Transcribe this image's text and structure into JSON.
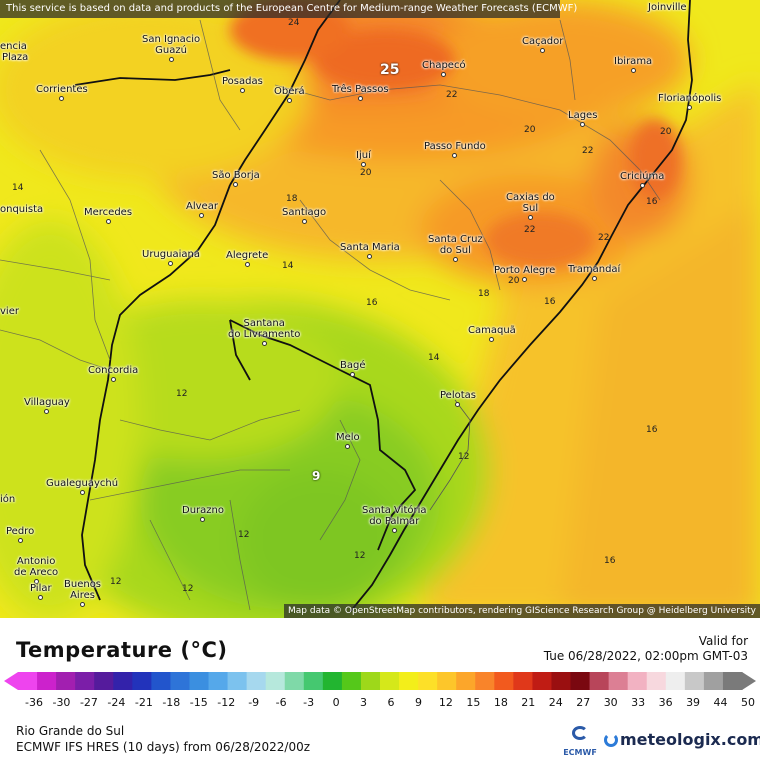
{
  "notice": "This service is based on data and products of the European Centre for Medium-range Weather Forecasts (ECMWF)",
  "attribution": "Map data © OpenStreetMap contributors, rendering GIScience Research Group @ Heidelberg University",
  "title": "Temperature (°C)",
  "valid": {
    "label": "Valid for",
    "time": "Tue 06/28/2022, 02:00pm GMT-03"
  },
  "region": "Rio Grande do Sul",
  "model": "ECMWF IFS HRES (10 days) from 06/28/2022/00z",
  "brand": {
    "ecmwf": "ECMWF",
    "meteologix": "meteologix.com"
  },
  "legend": {
    "ticks": [
      "-36",
      "-30",
      "-27",
      "-24",
      "-21",
      "-18",
      "-15",
      "-12",
      "-9",
      "-6",
      "-3",
      "0",
      "3",
      "6",
      "9",
      "12",
      "15",
      "18",
      "21",
      "24",
      "27",
      "30",
      "33",
      "36",
      "39",
      "44",
      "50"
    ],
    "colors": [
      "#ee44ee",
      "#cc22cc",
      "#a21fb0",
      "#7b1ea8",
      "#551b9c",
      "#3322aa",
      "#2233bb",
      "#2255cc",
      "#2e74d8",
      "#3b8fe0",
      "#55a8ea",
      "#7cc2ee",
      "#a6d8ee",
      "#b6e8dc",
      "#7fd9a8",
      "#45c870",
      "#22b530",
      "#55c81a",
      "#9ed81a",
      "#d5e81a",
      "#f3ee1a",
      "#fde028",
      "#fdc62a",
      "#fca62a",
      "#f9842a",
      "#f25a1e",
      "#e0381a",
      "#c01c14",
      "#9a0f10",
      "#7a0810",
      "#b8455a",
      "#dc7f94",
      "#f2b2c2",
      "#f7d8de",
      "#eeeeee",
      "#c8c8c8",
      "#a0a0a0",
      "#7a7a7a"
    ]
  },
  "cities": [
    {
      "name": "Joinville"
    },
    {
      "name": "San Ignacio\nGuazú"
    },
    {
      "name": "Corrientes"
    },
    {
      "name": "Posadas"
    },
    {
      "name": "Oberá"
    },
    {
      "name": "Três Passos"
    },
    {
      "name": "Chapecó"
    },
    {
      "name": "Caçador"
    },
    {
      "name": "Ibirama"
    },
    {
      "name": "Florianópolis"
    },
    {
      "name": "Lages"
    },
    {
      "name": "Passo Fundo"
    },
    {
      "name": "Ijuí"
    },
    {
      "name": "São Borja"
    },
    {
      "name": "Criciúma"
    },
    {
      "name": "Caxias do\nSul"
    },
    {
      "name": "Mercedes"
    },
    {
      "name": "Alvear"
    },
    {
      "name": "Santiago"
    },
    {
      "name": "Santa Maria"
    },
    {
      "name": "Santa Cruz\ndo Sul"
    },
    {
      "name": "Uruguaiana"
    },
    {
      "name": "Alegrete"
    },
    {
      "name": "Porto Alegre"
    },
    {
      "name": "Tramandaí"
    },
    {
      "name": "Camaquã"
    },
    {
      "name": "Santana\ndo Livramento"
    },
    {
      "name": "Concordia"
    },
    {
      "name": "Bagé"
    },
    {
      "name": "Villaguay"
    },
    {
      "name": "Pelotas"
    },
    {
      "name": "Melo"
    },
    {
      "name": "Gualeguaychú"
    },
    {
      "name": "Santa Vitória\ndo Palmar"
    },
    {
      "name": "Durazno"
    },
    {
      "name": "Pedro"
    },
    {
      "name": "Antonio\nde Areco"
    },
    {
      "name": "Pilar"
    },
    {
      "name": "Buenos\nAires"
    },
    {
      "name": "Plaza"
    },
    {
      "name": "encia"
    },
    {
      "name": "onquista"
    },
    {
      "name": "vier"
    },
    {
      "name": "ión"
    }
  ],
  "isolines": [
    "25",
    "24",
    "22",
    "22",
    "20",
    "20",
    "20",
    "18",
    "20",
    "22",
    "22",
    "18",
    "16",
    "16",
    "14",
    "14",
    "14",
    "16",
    "12",
    "12",
    "12",
    "12",
    "12",
    "9",
    "16",
    "16",
    "12"
  ]
}
